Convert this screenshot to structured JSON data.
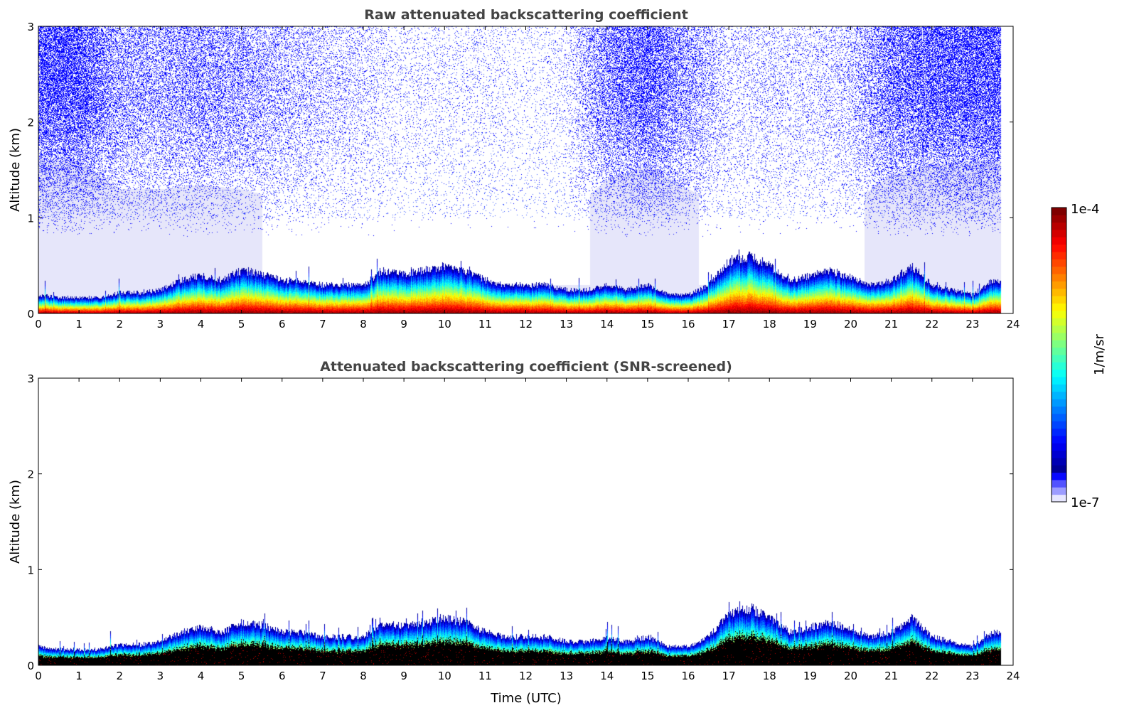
{
  "chart_data": {
    "type": "heatmap",
    "colorbar": {
      "label": "1/m/sr",
      "min_label": "1e-7",
      "max_label": "1e-4",
      "min": 1e-07,
      "max": 0.0001,
      "scale": "log"
    },
    "x_ticks": [
      "0",
      "1",
      "2",
      "3",
      "4",
      "5",
      "6",
      "7",
      "8",
      "9",
      "10",
      "11",
      "12",
      "13",
      "14",
      "15",
      "16",
      "17",
      "18",
      "19",
      "20",
      "21",
      "22",
      "23",
      "24"
    ],
    "y_ticks": [
      "0",
      "1",
      "2",
      "3"
    ],
    "xlim": [
      0,
      24
    ],
    "ylim": [
      0,
      3
    ],
    "data_end_time": 23.7,
    "layer_top_km": {
      "time": [
        0,
        0.5,
        1,
        1.5,
        2,
        2.5,
        3,
        3.5,
        4,
        4.5,
        5,
        5.5,
        6,
        6.5,
        7,
        7.5,
        8,
        8.5,
        9,
        9.5,
        10,
        10.5,
        11,
        11.5,
        12,
        12.5,
        13,
        13.5,
        14,
        14.5,
        15,
        15.5,
        16,
        16.5,
        17,
        17.5,
        18,
        18.5,
        19,
        19.5,
        20,
        20.5,
        21,
        21.5,
        22,
        22.5,
        23,
        23.5,
        23.7
      ],
      "height": [
        0.2,
        0.17,
        0.17,
        0.17,
        0.22,
        0.22,
        0.25,
        0.35,
        0.4,
        0.35,
        0.45,
        0.42,
        0.35,
        0.35,
        0.3,
        0.3,
        0.3,
        0.45,
        0.42,
        0.45,
        0.5,
        0.45,
        0.35,
        0.3,
        0.3,
        0.3,
        0.25,
        0.25,
        0.3,
        0.25,
        0.3,
        0.2,
        0.2,
        0.3,
        0.55,
        0.6,
        0.5,
        0.35,
        0.4,
        0.45,
        0.38,
        0.3,
        0.35,
        0.5,
        0.3,
        0.25,
        0.2,
        0.35,
        0.35
      ]
    },
    "raw_noise_density": {
      "time": [
        0,
        1,
        2,
        3,
        4,
        5,
        6,
        7,
        8,
        9,
        10,
        11,
        12,
        13,
        14,
        15,
        16,
        17,
        18,
        19,
        20,
        21,
        22,
        23,
        24
      ],
      "density": [
        0.6,
        0.6,
        0.3,
        0.3,
        0.35,
        0.3,
        0.2,
        0.15,
        0.1,
        0.05,
        0.05,
        0.05,
        0.03,
        0.05,
        0.4,
        0.55,
        0.3,
        0.1,
        0.1,
        0.1,
        0.15,
        0.45,
        0.55,
        0.6,
        0.6
      ]
    },
    "panels": [
      {
        "title": "Raw attenuated backscattering coefficient",
        "ylabel": "Altitude (km)",
        "xlabel": ""
      },
      {
        "title": "Attenuated backscattering coefficient (SNR-screened)",
        "ylabel": "Altitude (km)",
        "xlabel": "Time (UTC)"
      }
    ]
  }
}
